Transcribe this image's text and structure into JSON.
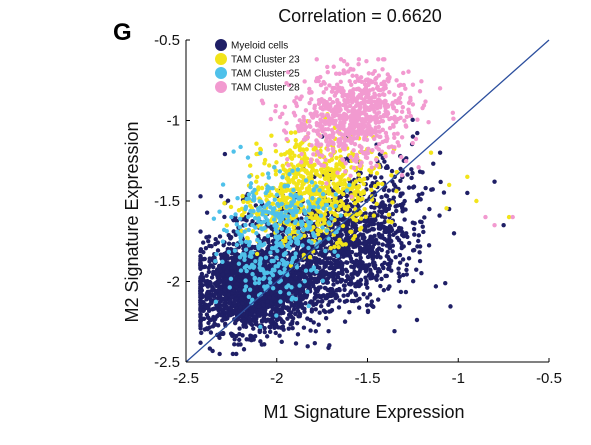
{
  "panel_letter": "G",
  "chart_data": {
    "type": "scatter",
    "title": "Correlation = 0.6620",
    "xlabel": "M1 Signature Expression",
    "ylabel": "M2 Signature Expression",
    "xlim": [
      -2.5,
      -0.5
    ],
    "ylim": [
      -2.5,
      -0.5
    ],
    "xticks": [
      -2.5,
      -2,
      -1.5,
      -1,
      -0.5
    ],
    "yticks": [
      -0.5,
      -1,
      -1.5,
      -2,
      -2.5
    ],
    "xtick_labels": [
      "-2.5",
      "-2",
      "-1.5",
      "-1",
      "-0.5"
    ],
    "ytick_labels": [
      "-0.5",
      "-1",
      "-1.5",
      "-2",
      "-2.5"
    ],
    "grid": false,
    "legend_position": "top-left",
    "fit_line": {
      "from": [
        -2.5,
        -2.5
      ],
      "to": [
        -0.5,
        -0.5
      ],
      "color": "#2c4f9e"
    },
    "series": [
      {
        "name": "Myeloid cells",
        "color": "#1f1f66",
        "clusters": [
          {
            "cx": -2.15,
            "cy": -2.05,
            "sx": 0.16,
            "sy": 0.13,
            "n": 1700
          },
          {
            "cx": -1.85,
            "cy": -1.85,
            "sx": 0.22,
            "sy": 0.18,
            "n": 1000
          },
          {
            "cx": -1.55,
            "cy": -1.7,
            "sx": 0.15,
            "sy": 0.18,
            "n": 450
          },
          {
            "cx": -1.35,
            "cy": -1.55,
            "sx": 0.12,
            "sy": 0.2,
            "n": 120
          }
        ],
        "points": [
          [
            -0.75,
            -1.65
          ],
          [
            -0.8,
            -1.38
          ],
          [
            -0.95,
            -1.45
          ],
          [
            -1.1,
            -1.2
          ],
          [
            -1.05,
            -1.55
          ],
          [
            -1.3,
            -1.25
          ],
          [
            -1.25,
            -1.1
          ],
          [
            -1.45,
            -1.15
          ],
          [
            -1.6,
            -1.25
          ],
          [
            -1.75,
            -1.1
          ]
        ]
      },
      {
        "name": "TAM Cluster 23",
        "color": "#f2e41a",
        "clusters": [
          {
            "cx": -1.75,
            "cy": -1.4,
            "sx": 0.16,
            "sy": 0.16,
            "n": 520
          },
          {
            "cx": -1.95,
            "cy": -1.55,
            "sx": 0.14,
            "sy": 0.12,
            "n": 160
          }
        ],
        "points": [
          [
            -0.95,
            -1.35
          ],
          [
            -0.9,
            -1.5
          ],
          [
            -0.72,
            -1.6
          ],
          [
            -1.05,
            -1.4
          ],
          [
            -1.15,
            -1.2
          ]
        ]
      },
      {
        "name": "TAM Cluster 25",
        "color": "#4fc1ea",
        "clusters": [
          {
            "cx": -2.0,
            "cy": -1.65,
            "sx": 0.16,
            "sy": 0.16,
            "n": 300
          },
          {
            "cx": -2.05,
            "cy": -1.95,
            "sx": 0.12,
            "sy": 0.1,
            "n": 80
          }
        ],
        "points": [
          [
            -2.25,
            -1.6
          ],
          [
            -2.2,
            -1.75
          ],
          [
            -1.6,
            -1.4
          ]
        ]
      },
      {
        "name": "TAM Cluster 28",
        "color": "#f29ad0",
        "clusters": [
          {
            "cx": -1.6,
            "cy": -1.0,
            "sx": 0.16,
            "sy": 0.14,
            "n": 620
          },
          {
            "cx": -1.45,
            "cy": -0.85,
            "sx": 0.12,
            "sy": 0.1,
            "n": 120
          }
        ],
        "points": [
          [
            -0.85,
            -1.6
          ],
          [
            -0.8,
            -1.65
          ],
          [
            -0.7,
            -1.6
          ],
          [
            -1.1,
            -0.8
          ],
          [
            -1.3,
            -0.78
          ],
          [
            -1.25,
            -0.9
          ]
        ]
      }
    ]
  }
}
